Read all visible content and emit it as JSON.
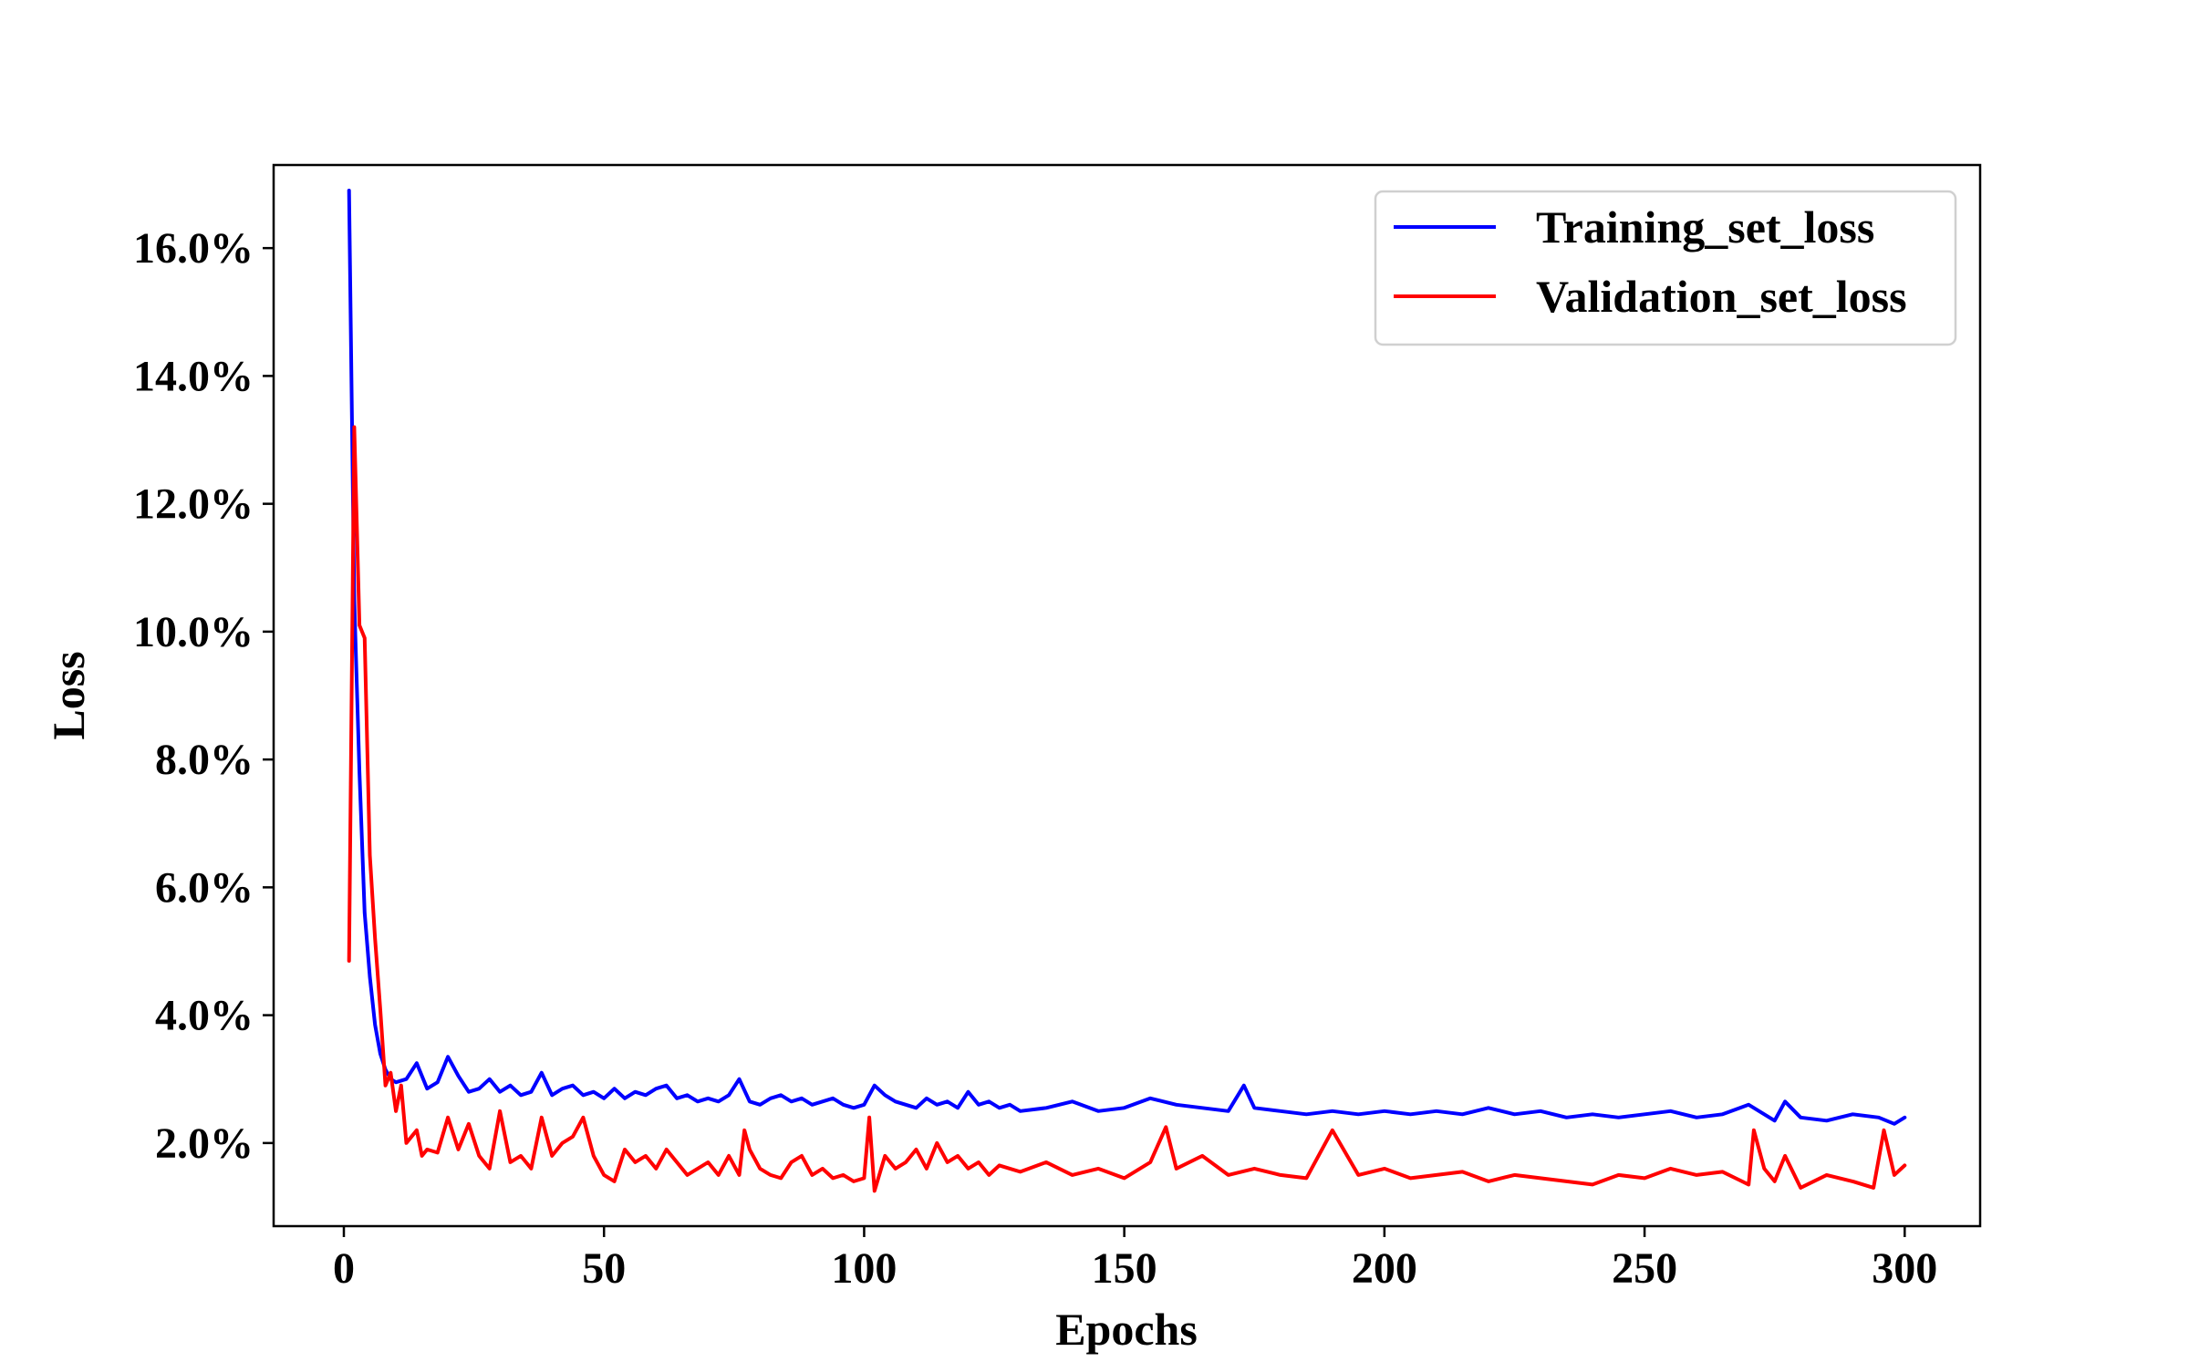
{
  "chart_data": {
    "type": "line",
    "title": "",
    "xlabel": "Epochs",
    "ylabel": "Loss",
    "xlim": [
      -13.5,
      314.5
    ],
    "ylim": [
      0.7,
      17.3
    ],
    "x_ticks": [
      0,
      50,
      100,
      150,
      200,
      250,
      300
    ],
    "x_tick_labels": [
      "0",
      "50",
      "100",
      "150",
      "200",
      "250",
      "300"
    ],
    "y_ticks": [
      2,
      4,
      6,
      8,
      10,
      12,
      14,
      16
    ],
    "y_tick_labels": [
      "2.0%",
      "4.0%",
      "6.0%",
      "8.0%",
      "10.0%",
      "12.0%",
      "14.0%",
      "16.0%"
    ],
    "grid": false,
    "legend_position": "upper right",
    "colors": {
      "training": "#0000ff",
      "validation": "#ff0000",
      "axis": "#000000"
    },
    "series": [
      {
        "name": "Training_set_loss",
        "color": "#0000ff",
        "x": [
          1,
          2,
          3,
          4,
          5,
          6,
          7,
          8,
          9,
          10,
          12,
          14,
          16,
          18,
          20,
          22,
          24,
          26,
          28,
          30,
          32,
          34,
          36,
          38,
          40,
          42,
          44,
          46,
          48,
          50,
          52,
          54,
          56,
          58,
          60,
          62,
          64,
          66,
          68,
          70,
          72,
          74,
          76,
          78,
          80,
          82,
          84,
          86,
          88,
          90,
          92,
          94,
          96,
          98,
          100,
          102,
          104,
          106,
          108,
          110,
          112,
          114,
          116,
          118,
          120,
          122,
          124,
          126,
          128,
          130,
          135,
          140,
          145,
          150,
          155,
          160,
          165,
          170,
          173,
          175,
          180,
          185,
          190,
          195,
          200,
          205,
          210,
          215,
          220,
          225,
          230,
          235,
          240,
          245,
          250,
          255,
          260,
          265,
          270,
          275,
          277,
          280,
          285,
          290,
          295,
          298,
          300
        ],
        "y": [
          16.9,
          10.5,
          7.8,
          5.6,
          4.6,
          3.85,
          3.4,
          3.15,
          3.0,
          2.95,
          3.0,
          3.25,
          2.85,
          2.95,
          3.35,
          3.05,
          2.8,
          2.85,
          3.0,
          2.8,
          2.9,
          2.75,
          2.8,
          3.1,
          2.75,
          2.85,
          2.9,
          2.75,
          2.8,
          2.7,
          2.85,
          2.7,
          2.8,
          2.75,
          2.85,
          2.9,
          2.7,
          2.75,
          2.65,
          2.7,
          2.65,
          2.75,
          3.0,
          2.65,
          2.6,
          2.7,
          2.75,
          2.65,
          2.7,
          2.6,
          2.65,
          2.7,
          2.6,
          2.55,
          2.6,
          2.9,
          2.75,
          2.65,
          2.6,
          2.55,
          2.7,
          2.6,
          2.65,
          2.55,
          2.8,
          2.6,
          2.65,
          2.55,
          2.6,
          2.5,
          2.55,
          2.65,
          2.5,
          2.55,
          2.7,
          2.6,
          2.55,
          2.5,
          2.9,
          2.55,
          2.5,
          2.45,
          2.5,
          2.45,
          2.5,
          2.45,
          2.5,
          2.45,
          2.55,
          2.45,
          2.5,
          2.4,
          2.45,
          2.4,
          2.45,
          2.5,
          2.4,
          2.45,
          2.6,
          2.35,
          2.65,
          2.4,
          2.35,
          2.45,
          2.4,
          2.3,
          2.4
        ]
      },
      {
        "name": "Validation_set_loss",
        "color": "#ff0000",
        "x": [
          1,
          2,
          3,
          4,
          5,
          6,
          7,
          8,
          9,
          10,
          11,
          12,
          13,
          14,
          15,
          16,
          18,
          20,
          22,
          24,
          26,
          28,
          30,
          32,
          34,
          36,
          38,
          40,
          42,
          44,
          46,
          48,
          50,
          52,
          54,
          56,
          58,
          60,
          62,
          64,
          66,
          68,
          70,
          72,
          74,
          76,
          77,
          78,
          80,
          82,
          84,
          86,
          88,
          90,
          92,
          94,
          96,
          98,
          100,
          101,
          102,
          104,
          106,
          108,
          110,
          112,
          114,
          116,
          118,
          120,
          122,
          124,
          126,
          128,
          130,
          135,
          140,
          145,
          150,
          155,
          158,
          160,
          165,
          170,
          175,
          180,
          185,
          190,
          195,
          200,
          205,
          210,
          215,
          220,
          225,
          230,
          235,
          240,
          245,
          250,
          255,
          260,
          265,
          270,
          271,
          273,
          275,
          277,
          280,
          285,
          290,
          294,
          296,
          298,
          300
        ],
        "y": [
          4.85,
          13.2,
          10.1,
          9.9,
          6.5,
          5.2,
          4.1,
          2.9,
          3.1,
          2.5,
          2.9,
          2.0,
          2.1,
          2.2,
          1.8,
          1.9,
          1.85,
          2.4,
          1.9,
          2.3,
          1.8,
          1.6,
          2.5,
          1.7,
          1.8,
          1.6,
          2.4,
          1.8,
          2.0,
          2.1,
          2.4,
          1.8,
          1.5,
          1.4,
          1.9,
          1.7,
          1.8,
          1.6,
          1.9,
          1.7,
          1.5,
          1.6,
          1.7,
          1.5,
          1.8,
          1.5,
          2.2,
          1.9,
          1.6,
          1.5,
          1.45,
          1.7,
          1.8,
          1.5,
          1.6,
          1.45,
          1.5,
          1.4,
          1.45,
          2.4,
          1.25,
          1.8,
          1.6,
          1.7,
          1.9,
          1.6,
          2.0,
          1.7,
          1.8,
          1.6,
          1.7,
          1.5,
          1.65,
          1.6,
          1.55,
          1.7,
          1.5,
          1.6,
          1.45,
          1.7,
          2.25,
          1.6,
          1.8,
          1.5,
          1.6,
          1.5,
          1.45,
          2.2,
          1.5,
          1.6,
          1.45,
          1.5,
          1.55,
          1.4,
          1.5,
          1.45,
          1.4,
          1.35,
          1.5,
          1.45,
          1.6,
          1.5,
          1.55,
          1.35,
          2.2,
          1.6,
          1.4,
          1.8,
          1.3,
          1.5,
          1.4,
          1.3,
          2.2,
          1.5,
          1.65
        ]
      }
    ]
  }
}
